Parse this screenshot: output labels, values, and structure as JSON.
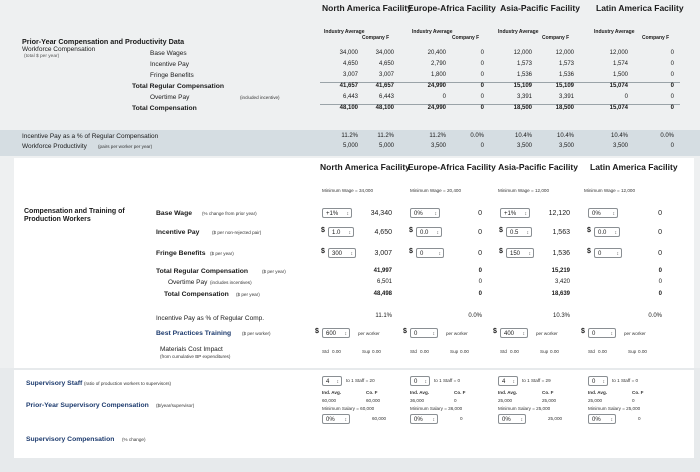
{
  "regions": [
    "North America Facility",
    "Europe-Africa Facility",
    "Asia-Pacific Facility",
    "Latin America Facility"
  ],
  "col_headers": {
    "industry": "Industry Average",
    "company": "Company F"
  },
  "prior_section": {
    "title": "Prior-Year Compensation and Productivity Data",
    "subtitle": "Workforce Compensation",
    "subnote": "(total $ per year)",
    "rows": [
      {
        "label": "Base Wages",
        "bold": false,
        "note": "",
        "values": [
          "34,000",
          "34,000",
          "20,400",
          "0",
          "12,000",
          "12,000",
          "12,000",
          "0"
        ]
      },
      {
        "label": "Incentive Pay",
        "bold": false,
        "note": "",
        "values": [
          "4,650",
          "4,650",
          "2,790",
          "0",
          "1,573",
          "1,573",
          "1,574",
          "0"
        ]
      },
      {
        "label": "Fringe Benefits",
        "bold": false,
        "note": "",
        "values": [
          "3,007",
          "3,007",
          "1,800",
          "0",
          "1,536",
          "1,536",
          "1,500",
          "0"
        ]
      },
      {
        "label": "Total Regular Compensation",
        "bold": true,
        "note": "",
        "values": [
          "41,657",
          "41,657",
          "24,990",
          "0",
          "15,109",
          "15,109",
          "15,074",
          "0"
        ]
      },
      {
        "label": "Overtime Pay",
        "bold": false,
        "note": "(included incentive)",
        "values": [
          "6,443",
          "6,443",
          "0",
          "0",
          "3,391",
          "3,391",
          "0",
          "0"
        ]
      },
      {
        "label": "Total Compensation",
        "bold": true,
        "note": "",
        "values": [
          "48,100",
          "48,100",
          "24,990",
          "0",
          "18,500",
          "18,500",
          "15,074",
          "0"
        ]
      }
    ]
  },
  "incentive_rows": [
    {
      "label": "Incentive Pay as a % of Regular Compensation",
      "note": "",
      "values": [
        "11.2%",
        "11.2%",
        "11.2%",
        "0.0%",
        "10.4%",
        "10.4%",
        "10.4%",
        "0.0%"
      ]
    },
    {
      "label": "Workforce Productivity",
      "note": "(pairs per worker per year)",
      "values": [
        "5,000",
        "5,000",
        "3,500",
        "0",
        "3,500",
        "3,500",
        "3,500",
        "0"
      ]
    }
  ],
  "min_wages": [
    "Minimum Wage = 34,000",
    "Minimum Wage = 20,400",
    "Minimum Wage = 12,000",
    "Minimum Wage = 12,000"
  ],
  "decisions": {
    "section_title": "Compensation and Training of Production Workers",
    "base_wage": {
      "label": "Base Wage",
      "note": "(% change from prior year)",
      "inputs": [
        "+1%",
        "0%",
        "+1%",
        "0%"
      ],
      "values": [
        "34,340",
        "0",
        "12,120",
        "0"
      ]
    },
    "incentive_pay": {
      "label": "Incentive Pay",
      "note": "($ per non-rejected pair)",
      "inputs": [
        "1.0",
        "0.0",
        "0.5",
        "0.0"
      ],
      "values": [
        "4,650",
        "0",
        "1,563",
        "0"
      ]
    },
    "fringe": {
      "label": "Fringe Benefits",
      "note": "($ per year)",
      "inputs": [
        "300",
        "0",
        "150",
        "0"
      ],
      "values": [
        "3,007",
        "0",
        "1,536",
        "0"
      ]
    },
    "total_regular": {
      "label": "Total Regular Compensation",
      "note": "($ per year)",
      "values": [
        "41,997",
        "0",
        "15,219",
        "0"
      ]
    },
    "overtime": {
      "label": "Overtime Pay",
      "note": "(includes incentives)",
      "values": [
        "6,501",
        "0",
        "3,420",
        "0"
      ]
    },
    "total_comp": {
      "label": "Total Compensation",
      "note": "($ per year)",
      "values": [
        "48,498",
        "0",
        "18,639",
        "0"
      ]
    },
    "incentive_pct": {
      "label": "Incentive Pay as % of Regular Comp.",
      "values": [
        "11.1%",
        "0.0%",
        "10.3%",
        "0.0%"
      ]
    },
    "training": {
      "label": "Best Practices Training",
      "note": "($ per worker)",
      "inputs": [
        "600",
        "0",
        "400",
        "0"
      ],
      "unit": "per worker"
    },
    "materials": {
      "label": "Materials Cost Impact",
      "note": "(from cumulative BP expenditures)",
      "std_label": "Std",
      "sup_label": "Sup",
      "values": [
        "0.00",
        "0.00",
        "0.00",
        "0.00",
        "0.00",
        "0.00",
        "0.00",
        "0.00"
      ]
    }
  },
  "supervisory": {
    "staff_label": "Supervisory Staff",
    "staff_note": "(ratio of production workers to supervisors)",
    "staff_inputs": [
      "4",
      "0",
      "4",
      "0"
    ],
    "staff_text": [
      "to 1 Staff = 20",
      "to 1 Staff = 0",
      "to 1 Staff = 29",
      "to 1 Staff = 0"
    ],
    "prior_label": "Prior-Year Supervisory Compensation",
    "prior_note": "($/year/supervisor)",
    "ind_label": "Ind. Avg.",
    "co_label": "Co. F",
    "prior_values": [
      [
        "60,000",
        "60,000"
      ],
      [
        "36,000",
        "0"
      ],
      [
        "25,000",
        "25,000"
      ],
      [
        "25,000",
        "0"
      ]
    ],
    "min_salary": [
      "Minimum Salary = 60,000",
      "Minimum Salary = 36,000",
      "Minimum Salary = 25,000",
      "Minimum Salary = 25,000"
    ],
    "comp_label": "Supervisory Compensation",
    "comp_note": "(% change)",
    "comp_inputs": [
      "0%",
      "0%",
      "0%",
      "0%"
    ],
    "comp_values": [
      "60,000",
      "0",
      "25,000",
      "0"
    ]
  },
  "colors": {
    "band": "#d5dde2",
    "panel": "#ffffff",
    "border": "#8a8f93"
  }
}
